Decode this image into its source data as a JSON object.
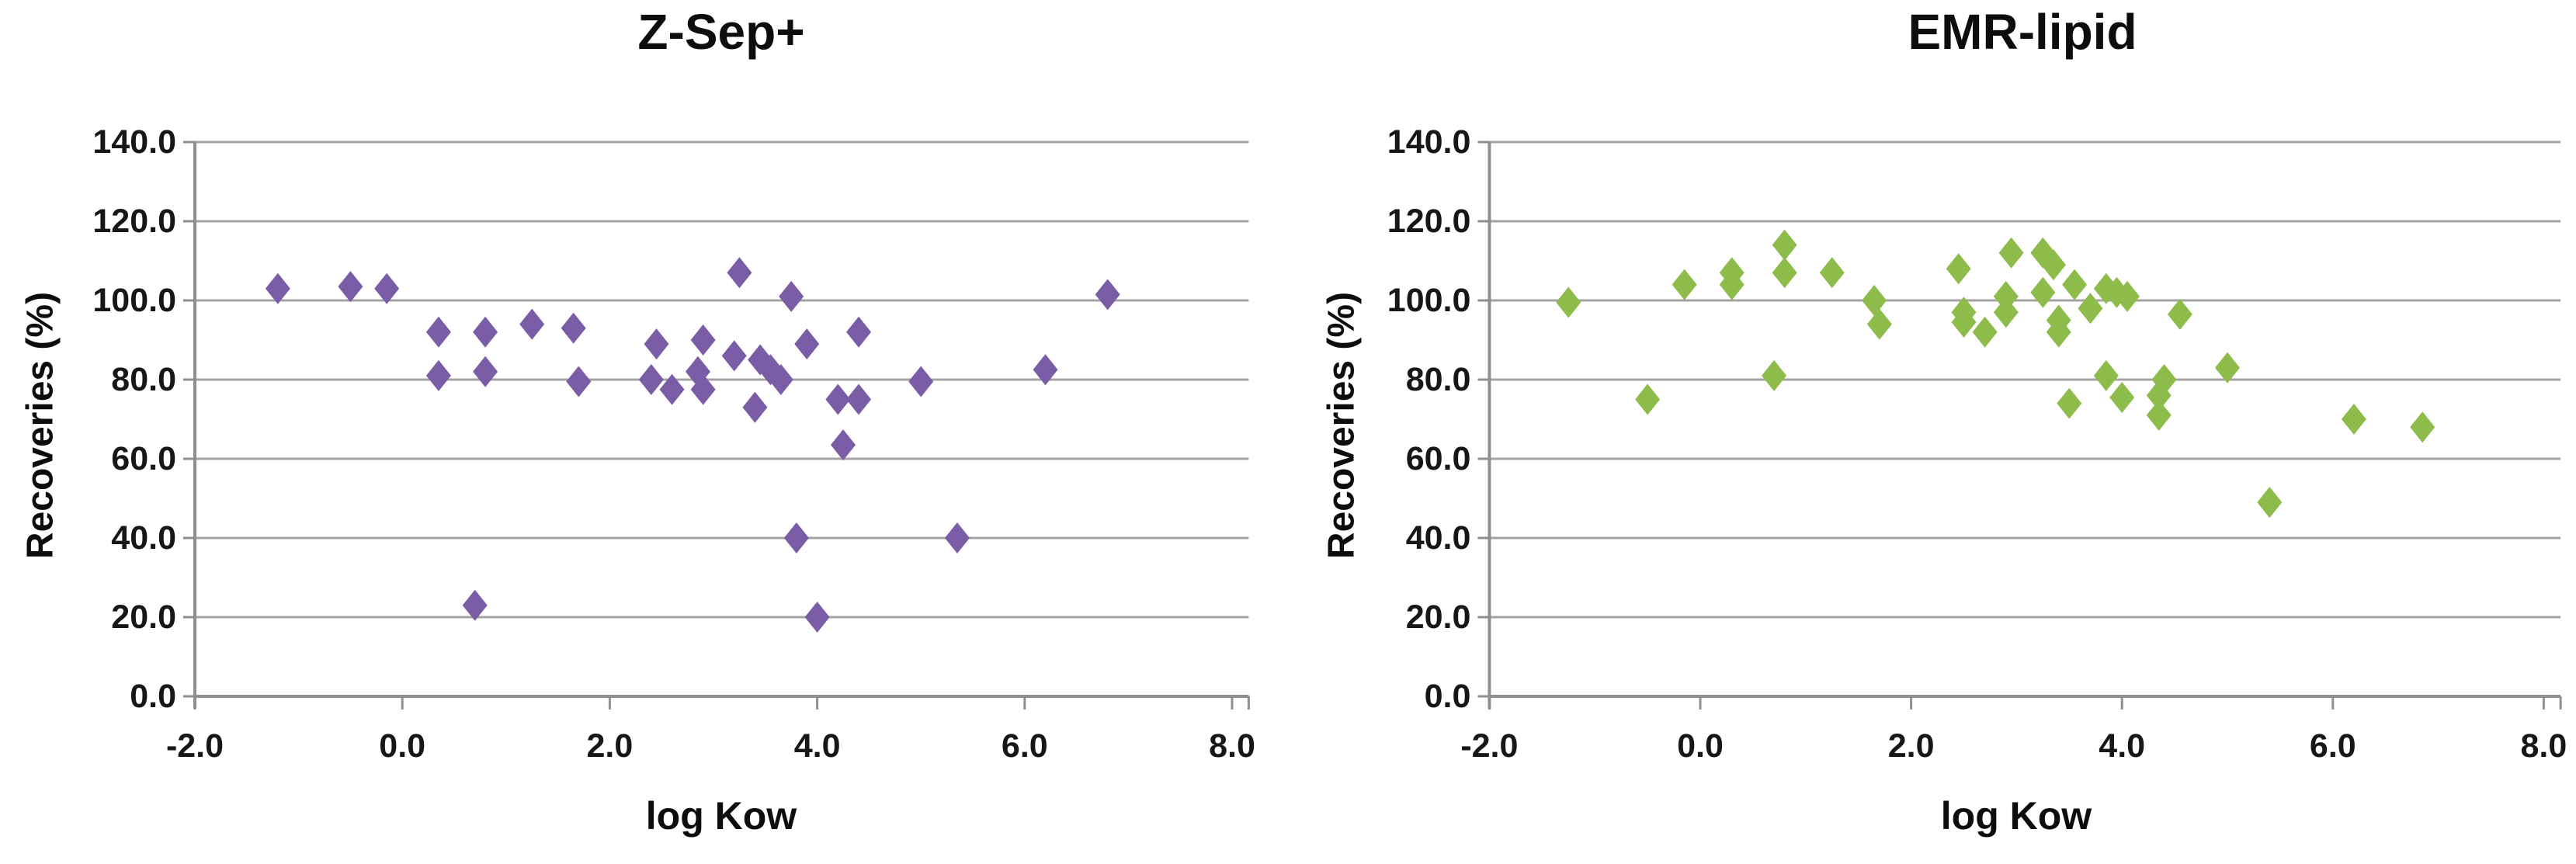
{
  "figure_caption": "",
  "chart_data": [
    {
      "type": "scatter",
      "title": "Z-Sep+",
      "xlabel": "log Kow",
      "ylabel": "Recoveries (%)",
      "xlim": [
        -2.0,
        8.0
      ],
      "ylim": [
        0.0,
        140.0
      ],
      "x_tick_labels": [
        "-2.0",
        "0.0",
        "2.0",
        "4.0",
        "6.0",
        "8.0"
      ],
      "y_tick_labels": [
        "140.0",
        "120.0",
        "100.0",
        "80.0",
        "60.0",
        "40.0",
        "20.0",
        "0.0"
      ],
      "grid": true,
      "legend": false,
      "marker": "diamond",
      "marker_color": "#7B5CA6",
      "series": [
        {
          "name": "Z-Sep+ recoveries",
          "points": [
            [
              -1.2,
              103
            ],
            [
              -0.5,
              103.5
            ],
            [
              -0.15,
              103
            ],
            [
              0.35,
              92
            ],
            [
              0.8,
              92
            ],
            [
              1.25,
              94
            ],
            [
              1.65,
              93
            ],
            [
              0.35,
              81
            ],
            [
              0.8,
              82
            ],
            [
              1.7,
              79.5
            ],
            [
              2.45,
              89
            ],
            [
              2.4,
              80
            ],
            [
              2.6,
              77.5
            ],
            [
              2.9,
              90
            ],
            [
              2.85,
              82
            ],
            [
              2.9,
              77.5
            ],
            [
              3.2,
              86
            ],
            [
              3.45,
              85
            ],
            [
              3.55,
              82.5
            ],
            [
              3.65,
              80
            ],
            [
              3.4,
              73
            ],
            [
              3.25,
              107
            ],
            [
              3.75,
              101
            ],
            [
              3.9,
              89
            ],
            [
              4.4,
              92
            ],
            [
              4.2,
              75
            ],
            [
              4.4,
              75
            ],
            [
              4.25,
              63.5
            ],
            [
              5.0,
              79.5
            ],
            [
              6.2,
              82.5
            ],
            [
              6.8,
              101.5
            ],
            [
              3.8,
              40
            ],
            [
              5.35,
              40
            ],
            [
              0.7,
              23
            ],
            [
              4.0,
              20
            ]
          ]
        }
      ]
    },
    {
      "type": "scatter",
      "title": "EMR-lipid",
      "xlabel": "log Kow",
      "ylabel": "Recoveries (%)",
      "xlim": [
        -2.0,
        8.0
      ],
      "ylim": [
        0.0,
        140.0
      ],
      "x_tick_labels": [
        "-2.0",
        "0.0",
        "2.0",
        "4.0",
        "6.0",
        "8.0"
      ],
      "y_tick_labels": [
        "140.0",
        "120.0",
        "100.0",
        "80.0",
        "60.0",
        "40.0",
        "20.0",
        "0.0"
      ],
      "grid": true,
      "legend": false,
      "marker": "diamond",
      "marker_color": "#8DBC4A",
      "series": [
        {
          "name": "EMR-lipid recoveries",
          "points": [
            [
              -1.25,
              99.5
            ],
            [
              -0.5,
              75
            ],
            [
              -0.15,
              104
            ],
            [
              0.3,
              107
            ],
            [
              0.3,
              104
            ],
            [
              0.8,
              114
            ],
            [
              0.8,
              107
            ],
            [
              1.25,
              107
            ],
            [
              1.65,
              100
            ],
            [
              1.7,
              94
            ],
            [
              0.7,
              81
            ],
            [
              2.45,
              108
            ],
            [
              2.5,
              97
            ],
            [
              2.5,
              94.5
            ],
            [
              2.7,
              92
            ],
            [
              2.95,
              112
            ],
            [
              2.9,
              101
            ],
            [
              2.9,
              97
            ],
            [
              3.25,
              112
            ],
            [
              3.35,
              109
            ],
            [
              3.25,
              102
            ],
            [
              3.4,
              95
            ],
            [
              3.4,
              92
            ],
            [
              3.55,
              104
            ],
            [
              3.7,
              98
            ],
            [
              3.85,
              103
            ],
            [
              3.95,
              102
            ],
            [
              4.05,
              101
            ],
            [
              3.5,
              74
            ],
            [
              3.85,
              81
            ],
            [
              4.0,
              75.5
            ],
            [
              4.4,
              80
            ],
            [
              4.35,
              76
            ],
            [
              4.35,
              71
            ],
            [
              4.55,
              96.5
            ],
            [
              5.0,
              83
            ],
            [
              5.4,
              49
            ],
            [
              6.2,
              70
            ],
            [
              6.85,
              68
            ]
          ]
        }
      ]
    }
  ],
  "style": {
    "gridline_color": "#a3a3a3",
    "axis_color": "#8f8f8f",
    "text_color": "#141414",
    "background": "#ffffff"
  }
}
